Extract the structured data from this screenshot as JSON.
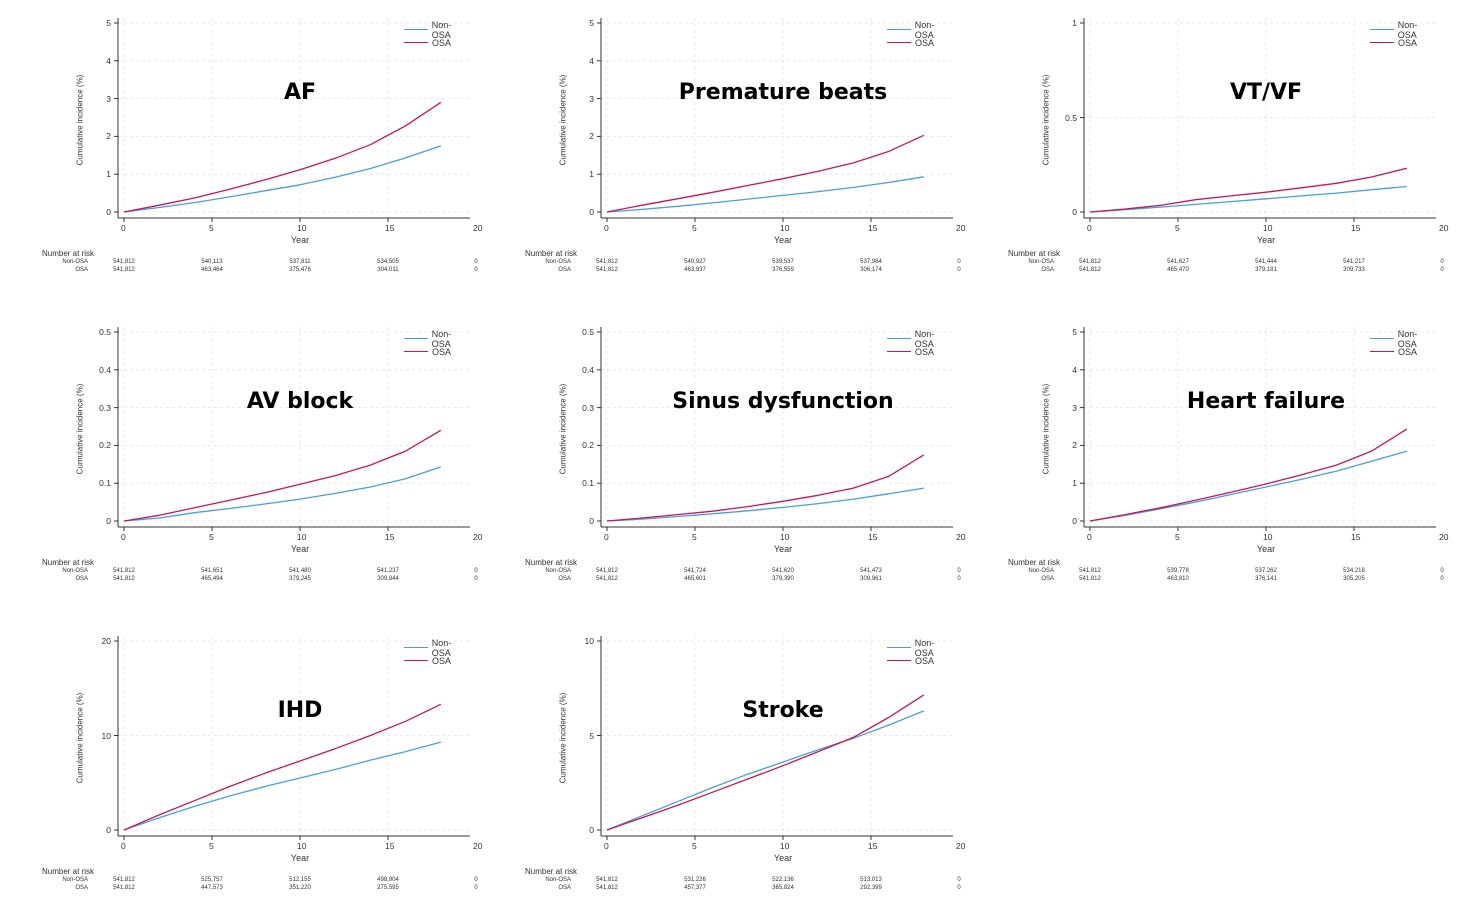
{
  "chart_data": [
    {
      "type": "line",
      "title": "AF",
      "xlabel": "Year",
      "ylabel": "Cumulative incidence (%)",
      "xlim": [
        0,
        20
      ],
      "ylim": [
        0,
        5
      ],
      "xticks": [
        0,
        5,
        10,
        15,
        20
      ],
      "yticks": [
        0,
        1,
        2,
        3,
        4,
        5
      ],
      "ytick_labels": [
        "0",
        "1",
        "2",
        "3",
        "4",
        "5"
      ],
      "legend": "top-right",
      "series": [
        {
          "name": "Non-OSA",
          "color": "#4a9fd5",
          "x": [
            0,
            2,
            4,
            6,
            8,
            10,
            12,
            14,
            16,
            18
          ],
          "y": [
            0,
            0.12,
            0.25,
            0.4,
            0.56,
            0.72,
            0.92,
            1.15,
            1.43,
            1.75
          ]
        },
        {
          "name": "OSA",
          "color": "#c2185b",
          "x": [
            0,
            2,
            4,
            6,
            8,
            10,
            12,
            14,
            16,
            18
          ],
          "y": [
            0,
            0.18,
            0.37,
            0.6,
            0.85,
            1.12,
            1.42,
            1.78,
            2.28,
            2.9
          ]
        }
      ],
      "risk_table": {
        "title": "Number at risk",
        "rows": [
          {
            "name": "Non-OSA",
            "values": [
              "541,812",
              "540,113",
              "537,811",
              "534,505",
              "0"
            ]
          },
          {
            "name": "OSA",
            "values": [
              "541,812",
              "463,464",
              "375,476",
              "304,011",
              "0"
            ]
          }
        ]
      }
    },
    {
      "type": "line",
      "title": "Premature beats",
      "xlabel": "Year",
      "ylabel": "Cumulative incidence (%)",
      "xlim": [
        0,
        20
      ],
      "ylim": [
        0,
        5
      ],
      "xticks": [
        0,
        5,
        10,
        15,
        20
      ],
      "yticks": [
        0,
        1,
        2,
        3,
        4,
        5
      ],
      "ytick_labels": [
        "0",
        "1",
        "2",
        "3",
        "4",
        "5"
      ],
      "legend": "top-right",
      "series": [
        {
          "name": "Non-OSA",
          "color": "#4a9fd5",
          "x": [
            0,
            2,
            4,
            6,
            8,
            10,
            12,
            14,
            16,
            18
          ],
          "y": [
            0,
            0.07,
            0.15,
            0.24,
            0.34,
            0.44,
            0.54,
            0.65,
            0.78,
            0.93
          ]
        },
        {
          "name": "OSA",
          "color": "#c2185b",
          "x": [
            0,
            2,
            4,
            6,
            8,
            10,
            12,
            14,
            16,
            18
          ],
          "y": [
            0,
            0.18,
            0.35,
            0.52,
            0.7,
            0.88,
            1.08,
            1.3,
            1.6,
            2.03
          ]
        }
      ],
      "risk_table": {
        "title": "Number at risk",
        "rows": [
          {
            "name": "Non-OSA",
            "values": [
              "541,812",
              "540,927",
              "539,537",
              "537,984",
              "0"
            ]
          },
          {
            "name": "OSA",
            "values": [
              "541,812",
              "463,937",
              "376,559",
              "306,174",
              "0"
            ]
          }
        ]
      }
    },
    {
      "type": "line",
      "title": "VT/VF",
      "xlabel": "Year",
      "ylabel": "Cumulative incidence (%)",
      "xlim": [
        0,
        20
      ],
      "ylim": [
        0,
        1
      ],
      "xticks": [
        0,
        5,
        10,
        15,
        20
      ],
      "yticks": [
        0,
        0.5,
        1
      ],
      "ytick_labels": [
        "0",
        "0.5",
        "1"
      ],
      "legend": "top-right",
      "series": [
        {
          "name": "Non-OSA",
          "color": "#4a9fd5",
          "x": [
            0,
            2,
            4,
            6,
            8,
            10,
            12,
            14,
            16,
            18
          ],
          "y": [
            0,
            0.012,
            0.026,
            0.04,
            0.055,
            0.07,
            0.085,
            0.1,
            0.118,
            0.135
          ]
        },
        {
          "name": "OSA",
          "color": "#c2185b",
          "x": [
            0,
            2,
            4,
            6,
            8,
            10,
            12,
            14,
            16,
            18
          ],
          "y": [
            0,
            0.016,
            0.035,
            0.065,
            0.085,
            0.105,
            0.128,
            0.152,
            0.185,
            0.232
          ]
        }
      ],
      "risk_table": {
        "title": "Number at risk",
        "rows": [
          {
            "name": "Non-OSA",
            "values": [
              "541,812",
              "541,627",
              "541,444",
              "541,217",
              "0"
            ]
          },
          {
            "name": "OSA",
            "values": [
              "541,812",
              "465,470",
              "379,181",
              "309,733",
              "0"
            ]
          }
        ]
      }
    },
    {
      "type": "line",
      "title": "AV block",
      "xlabel": "Year",
      "ylabel": "Cumulative incidence (%)",
      "xlim": [
        0,
        20
      ],
      "ylim": [
        0,
        0.5
      ],
      "xticks": [
        0,
        5,
        10,
        15,
        20
      ],
      "yticks": [
        0,
        0.1,
        0.2,
        0.3,
        0.4,
        0.5
      ],
      "ytick_labels": [
        "0",
        "0.1",
        "0.2",
        "0.3",
        "0.4",
        "0.5"
      ],
      "legend": "top-right",
      "series": [
        {
          "name": "Non-OSA",
          "color": "#4a9fd5",
          "x": [
            0,
            2,
            4,
            6,
            8,
            10,
            12,
            14,
            16,
            18
          ],
          "y": [
            0,
            0.008,
            0.022,
            0.033,
            0.045,
            0.058,
            0.073,
            0.09,
            0.112,
            0.143
          ]
        },
        {
          "name": "OSA",
          "color": "#c2185b",
          "x": [
            0,
            2,
            4,
            6,
            8,
            10,
            12,
            14,
            16,
            18
          ],
          "y": [
            0,
            0.015,
            0.035,
            0.055,
            0.075,
            0.097,
            0.12,
            0.148,
            0.185,
            0.24
          ]
        }
      ],
      "risk_table": {
        "title": "Number at risk",
        "rows": [
          {
            "name": "Non-OSA",
            "values": [
              "541,812",
              "541,651",
              "541,480",
              "541,237",
              "0"
            ]
          },
          {
            "name": "OSA",
            "values": [
              "541,812",
              "465,494",
              "379,245",
              "309,844",
              "0"
            ]
          }
        ]
      }
    },
    {
      "type": "line",
      "title": "Sinus dysfunction",
      "xlabel": "Year",
      "ylabel": "Cumulative incidence (%)",
      "xlim": [
        0,
        20
      ],
      "ylim": [
        0,
        0.5
      ],
      "xticks": [
        0,
        5,
        10,
        15,
        20
      ],
      "yticks": [
        0,
        0.1,
        0.2,
        0.3,
        0.4,
        0.5
      ],
      "ytick_labels": [
        "0",
        "0.1",
        "0.2",
        "0.3",
        "0.4",
        "0.5"
      ],
      "legend": "top-right",
      "series": [
        {
          "name": "Non-OSA",
          "color": "#4a9fd5",
          "x": [
            0,
            2,
            4,
            6,
            8,
            10,
            12,
            14,
            16,
            18
          ],
          "y": [
            0,
            0.005,
            0.012,
            0.019,
            0.027,
            0.036,
            0.046,
            0.058,
            0.072,
            0.087
          ]
        },
        {
          "name": "OSA",
          "color": "#c2185b",
          "x": [
            0,
            2,
            4,
            6,
            8,
            10,
            12,
            14,
            16,
            18
          ],
          "y": [
            0,
            0.008,
            0.017,
            0.026,
            0.038,
            0.052,
            0.068,
            0.087,
            0.118,
            0.175
          ]
        }
      ],
      "risk_table": {
        "title": "Number at risk",
        "rows": [
          {
            "name": "Non-OSA",
            "values": [
              "541,812",
              "541,724",
              "541,620",
              "541,473",
              "0"
            ]
          },
          {
            "name": "OSA",
            "values": [
              "541,812",
              "465,601",
              "379,390",
              "309,961",
              "0"
            ]
          }
        ]
      }
    },
    {
      "type": "line",
      "title": "Heart failure",
      "xlabel": "Year",
      "ylabel": "Cumulative incidence (%)",
      "xlim": [
        0,
        20
      ],
      "ylim": [
        0,
        5
      ],
      "xticks": [
        0,
        5,
        10,
        15,
        20
      ],
      "yticks": [
        0,
        1,
        2,
        3,
        4,
        5
      ],
      "ytick_labels": [
        "0",
        "1",
        "2",
        "3",
        "4",
        "5"
      ],
      "legend": "top-right",
      "series": [
        {
          "name": "Non-OSA",
          "color": "#4a9fd5",
          "x": [
            0,
            2,
            4,
            6,
            8,
            10,
            12,
            14,
            16,
            18
          ],
          "y": [
            0,
            0.15,
            0.32,
            0.5,
            0.7,
            0.9,
            1.1,
            1.32,
            1.58,
            1.85
          ]
        },
        {
          "name": "OSA",
          "color": "#c2185b",
          "x": [
            0,
            2,
            4,
            6,
            8,
            10,
            12,
            14,
            16,
            18
          ],
          "y": [
            0,
            0.17,
            0.35,
            0.55,
            0.76,
            0.98,
            1.22,
            1.48,
            1.85,
            2.43
          ]
        }
      ],
      "risk_table": {
        "title": "Number at risk",
        "rows": [
          {
            "name": "Non-OSA",
            "values": [
              "541,812",
              "539,778",
              "537,262",
              "534,218",
              "0"
            ]
          },
          {
            "name": "OSA",
            "values": [
              "541,812",
              "463,810",
              "376,141",
              "305,205",
              "0"
            ]
          }
        ]
      }
    },
    {
      "type": "line",
      "title": "IHD",
      "xlabel": "Year",
      "ylabel": "Cumulative incidence (%)",
      "xlim": [
        0,
        20
      ],
      "ylim": [
        0,
        20
      ],
      "xticks": [
        0,
        5,
        10,
        15,
        20
      ],
      "yticks": [
        0,
        10,
        20
      ],
      "ytick_labels": [
        "0",
        "10",
        "20"
      ],
      "legend": "top-right",
      "series": [
        {
          "name": "Non-OSA",
          "color": "#4a9fd5",
          "x": [
            0,
            2,
            4,
            6,
            8,
            10,
            12,
            14,
            16,
            18
          ],
          "y": [
            0,
            1.3,
            2.5,
            3.6,
            4.6,
            5.5,
            6.4,
            7.4,
            8.3,
            9.3
          ]
        },
        {
          "name": "OSA",
          "color": "#c2185b",
          "x": [
            0,
            2,
            4,
            6,
            8,
            10,
            12,
            14,
            16,
            18
          ],
          "y": [
            0,
            1.6,
            3.1,
            4.6,
            6.0,
            7.3,
            8.6,
            10.0,
            11.5,
            13.3
          ]
        }
      ],
      "risk_table": {
        "title": "Number at risk",
        "rows": [
          {
            "name": "Non-OSA",
            "values": [
              "541,812",
              "525,757",
              "512,155",
              "498,904",
              "0"
            ]
          },
          {
            "name": "OSA",
            "values": [
              "541,812",
              "447,573",
              "351,220",
              "275,595",
              "0"
            ]
          }
        ]
      }
    },
    {
      "type": "line",
      "title": "Stroke",
      "xlabel": "Year",
      "ylabel": "Cumulative incidence (%)",
      "xlim": [
        0,
        20
      ],
      "ylim": [
        0,
        10
      ],
      "xticks": [
        0,
        5,
        10,
        15,
        20
      ],
      "yticks": [
        0,
        5,
        10
      ],
      "ytick_labels": [
        "0",
        "5",
        "10"
      ],
      "legend": "top-right",
      "series": [
        {
          "name": "Non-OSA",
          "color": "#4a9fd5",
          "x": [
            0,
            2,
            4,
            6,
            8,
            10,
            12,
            14,
            16,
            18
          ],
          "y": [
            0,
            0.75,
            1.5,
            2.25,
            2.95,
            3.6,
            4.25,
            4.85,
            5.55,
            6.3
          ]
        },
        {
          "name": "OSA",
          "color": "#c2185b",
          "x": [
            0,
            2,
            4,
            6,
            8,
            10,
            12,
            14,
            16,
            18
          ],
          "y": [
            0,
            0.65,
            1.3,
            2.0,
            2.7,
            3.4,
            4.15,
            4.9,
            5.95,
            7.15
          ]
        }
      ],
      "risk_table": {
        "title": "Number at risk",
        "rows": [
          {
            "name": "Non-OSA",
            "values": [
              "541,812",
              "531,226",
              "522,136",
              "513,013",
              "0"
            ]
          },
          {
            "name": "OSA",
            "values": [
              "541,812",
              "457,377",
              "365,824",
              "292,399",
              "0"
            ]
          }
        ]
      }
    }
  ]
}
